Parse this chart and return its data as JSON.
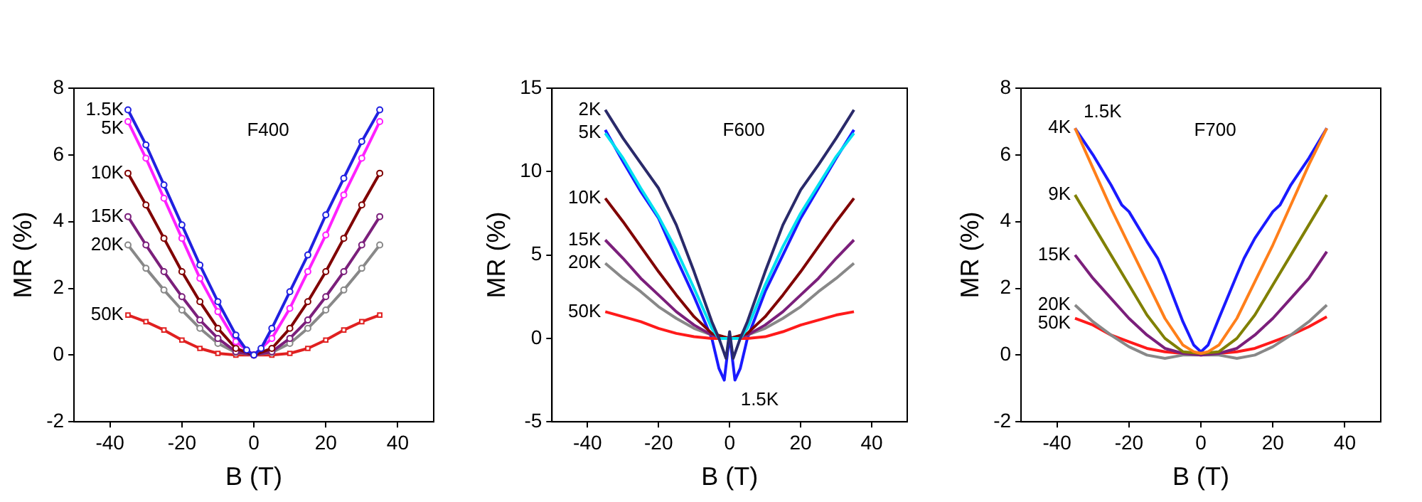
{
  "chart_data": [
    {
      "type": "line",
      "xlabel": "B (T)",
      "ylabel": "MR (%)",
      "annotations": [
        "F400"
      ],
      "xlim": [
        -50,
        50
      ],
      "xticks": [
        -40,
        -20,
        0,
        20,
        40
      ],
      "ylim": [
        -2,
        8
      ],
      "yticks": [
        -2,
        0,
        2,
        4,
        6,
        8
      ],
      "grid": false,
      "legend": false,
      "marker": "circle",
      "series": [
        {
          "name": "1.5K",
          "color": "#2020e0",
          "x": [
            -35,
            -30,
            -25,
            -20,
            -15,
            -10,
            -5,
            -2,
            0,
            2,
            5,
            10,
            15,
            20,
            25,
            30,
            35
          ],
          "values": [
            7.35,
            6.3,
            5.1,
            3.9,
            2.7,
            1.6,
            0.6,
            0.15,
            0,
            0.2,
            0.8,
            1.9,
            3.0,
            4.2,
            5.3,
            6.4,
            7.35
          ]
        },
        {
          "name": "5K",
          "color": "#ff20ff",
          "x": [
            -35,
            -30,
            -25,
            -20,
            -15,
            -10,
            -5,
            0,
            5,
            10,
            15,
            20,
            25,
            30,
            35
          ],
          "values": [
            7.0,
            5.9,
            4.7,
            3.5,
            2.3,
            1.3,
            0.4,
            0,
            0.5,
            1.4,
            2.5,
            3.6,
            4.8,
            5.9,
            7.0
          ]
        },
        {
          "name": "10K",
          "color": "#800000",
          "x": [
            -35,
            -30,
            -25,
            -20,
            -15,
            -10,
            -5,
            0,
            5,
            10,
            15,
            20,
            25,
            30,
            35
          ],
          "values": [
            5.45,
            4.5,
            3.5,
            2.5,
            1.6,
            0.8,
            0.2,
            0,
            0.2,
            0.8,
            1.6,
            2.5,
            3.5,
            4.5,
            5.45
          ]
        },
        {
          "name": "15K",
          "color": "#7b1f7b",
          "x": [
            -35,
            -30,
            -25,
            -20,
            -15,
            -10,
            -5,
            0,
            5,
            10,
            15,
            20,
            25,
            30,
            35
          ],
          "values": [
            4.15,
            3.3,
            2.5,
            1.75,
            1.05,
            0.5,
            0.1,
            0,
            0.1,
            0.5,
            1.05,
            1.75,
            2.5,
            3.3,
            4.15
          ]
        },
        {
          "name": "20K",
          "color": "#888888",
          "x": [
            -35,
            -30,
            -25,
            -20,
            -15,
            -10,
            -5,
            0,
            5,
            10,
            15,
            20,
            25,
            30,
            35
          ],
          "values": [
            3.3,
            2.6,
            1.95,
            1.35,
            0.8,
            0.35,
            0.08,
            0,
            0.08,
            0.35,
            0.8,
            1.35,
            1.95,
            2.6,
            3.3
          ]
        },
        {
          "name": "50K",
          "color": "#e02020",
          "marker": "square",
          "x": [
            -35,
            -30,
            -25,
            -20,
            -15,
            -10,
            -5,
            0,
            5,
            10,
            15,
            20,
            25,
            30,
            35
          ],
          "values": [
            1.2,
            1.0,
            0.75,
            0.45,
            0.2,
            0.05,
            0,
            0,
            0,
            0.05,
            0.2,
            0.45,
            0.75,
            1.0,
            1.2
          ]
        }
      ]
    },
    {
      "type": "line",
      "xlabel": "B (T)",
      "ylabel": "MR (%)",
      "annotations": [
        "F600"
      ],
      "xlim": [
        -50,
        50
      ],
      "xticks": [
        -40,
        -20,
        0,
        20,
        40
      ],
      "ylim": [
        -5,
        15
      ],
      "yticks": [
        -5,
        0,
        5,
        10,
        15
      ],
      "grid": false,
      "legend": false,
      "series": [
        {
          "name": "2K",
          "color": "#2a2a6a",
          "x": [
            -35,
            -30,
            -25,
            -20,
            -15,
            -10,
            -5,
            -3,
            -1,
            0,
            1,
            3,
            5,
            10,
            15,
            20,
            25,
            30,
            35
          ],
          "values": [
            13.7,
            12.0,
            10.5,
            9.0,
            6.8,
            4.0,
            1.0,
            0,
            -1.2,
            0.4,
            -1.2,
            0,
            1.0,
            4.0,
            6.8,
            8.9,
            10.4,
            12.0,
            13.7
          ]
        },
        {
          "name": "5K",
          "color": "#00e0f0",
          "x": [
            -35,
            -30,
            -25,
            -20,
            -15,
            -10,
            -5,
            -3,
            0,
            3,
            5,
            10,
            15,
            20,
            25,
            30,
            35
          ],
          "values": [
            12.3,
            10.8,
            9.0,
            7.3,
            5.3,
            3.0,
            0.6,
            0,
            0,
            0,
            0.6,
            3.2,
            5.5,
            7.5,
            9.2,
            10.9,
            12.3
          ]
        },
        {
          "name": "10K",
          "color": "#800000",
          "x": [
            -35,
            -30,
            -25,
            -20,
            -15,
            -10,
            -5,
            0,
            5,
            10,
            15,
            20,
            25,
            30,
            35
          ],
          "values": [
            8.4,
            7.0,
            5.5,
            4.0,
            2.6,
            1.3,
            0.3,
            0,
            0.3,
            1.3,
            2.6,
            4.0,
            5.5,
            7.0,
            8.4
          ]
        },
        {
          "name": "15K",
          "color": "#7b1f7b",
          "x": [
            -35,
            -30,
            -25,
            -20,
            -15,
            -10,
            -5,
            0,
            5,
            10,
            15,
            20,
            25,
            30,
            35
          ],
          "values": [
            5.9,
            4.8,
            3.6,
            2.6,
            1.6,
            0.8,
            0.2,
            0,
            0.2,
            0.8,
            1.6,
            2.6,
            3.6,
            4.8,
            5.9
          ]
        },
        {
          "name": "20K",
          "color": "#888888",
          "x": [
            -35,
            -30,
            -25,
            -20,
            -15,
            -10,
            -5,
            0,
            5,
            10,
            15,
            20,
            25,
            30,
            35
          ],
          "values": [
            4.5,
            3.6,
            2.8,
            1.9,
            1.2,
            0.6,
            0.2,
            0,
            0.2,
            0.6,
            1.2,
            1.9,
            2.8,
            3.6,
            4.5
          ]
        },
        {
          "name": "50K",
          "color": "#ff1a1a",
          "x": [
            -35,
            -30,
            -25,
            -20,
            -15,
            -10,
            -5,
            0,
            5,
            10,
            15,
            20,
            25,
            30,
            35
          ],
          "values": [
            1.6,
            1.3,
            1.0,
            0.6,
            0.3,
            0.1,
            0,
            0,
            0,
            0.1,
            0.4,
            0.8,
            1.1,
            1.4,
            1.6
          ]
        },
        {
          "name": "1.5K",
          "color": "#1a1aff",
          "x": [
            -35,
            -30,
            -25,
            -20,
            -15,
            -10,
            -5,
            -3,
            -1.5,
            0,
            1.5,
            3,
            5,
            10,
            15,
            20,
            25,
            30,
            35
          ],
          "values": [
            12.5,
            10.6,
            8.8,
            7.2,
            4.8,
            2.5,
            0,
            -1.8,
            -2.5,
            0.2,
            -2.5,
            -1.8,
            0,
            2.8,
            5.0,
            7.2,
            9.0,
            10.8,
            12.5
          ]
        }
      ]
    },
    {
      "type": "line",
      "xlabel": "B (T)",
      "ylabel": "MR (%)",
      "annotations": [
        "F700"
      ],
      "xlim": [
        -50,
        50
      ],
      "xticks": [
        -40,
        -20,
        0,
        20,
        40
      ],
      "ylim": [
        -2,
        8
      ],
      "yticks": [
        -2,
        0,
        2,
        4,
        6,
        8
      ],
      "grid": false,
      "legend": false,
      "series": [
        {
          "name": "4K",
          "color": "#ff7f1a",
          "x": [
            -35,
            -30,
            -25,
            -20,
            -15,
            -10,
            -5,
            -2,
            0,
            2,
            5,
            10,
            15,
            20,
            25,
            30,
            35
          ],
          "values": [
            6.8,
            5.6,
            4.4,
            3.3,
            2.2,
            1.1,
            0.3,
            0.1,
            0.05,
            0.1,
            0.3,
            1.1,
            2.2,
            3.3,
            4.5,
            5.7,
            6.8
          ]
        },
        {
          "name": "9K",
          "color": "#808000",
          "x": [
            -35,
            -30,
            -25,
            -20,
            -15,
            -10,
            -5,
            0,
            5,
            10,
            15,
            20,
            25,
            30,
            35
          ],
          "values": [
            4.8,
            3.9,
            3.0,
            2.1,
            1.2,
            0.5,
            0.1,
            0.05,
            0.1,
            0.5,
            1.2,
            2.1,
            3.0,
            3.9,
            4.8
          ]
        },
        {
          "name": "15K",
          "color": "#7b1f7b",
          "x": [
            -35,
            -30,
            -25,
            -20,
            -15,
            -10,
            -5,
            0,
            5,
            10,
            15,
            20,
            25,
            30,
            35
          ],
          "values": [
            3.0,
            2.3,
            1.7,
            1.1,
            0.6,
            0.2,
            0.05,
            0,
            0.05,
            0.2,
            0.6,
            1.1,
            1.7,
            2.3,
            3.1
          ]
        },
        {
          "name": "20K",
          "color": "#888888",
          "x": [
            -35,
            -30,
            -25,
            -20,
            -15,
            -10,
            -5,
            0,
            5,
            10,
            15,
            20,
            25,
            30,
            35
          ],
          "values": [
            1.5,
            1.0,
            0.6,
            0.25,
            0,
            -0.1,
            0,
            0,
            0,
            -0.1,
            0,
            0.25,
            0.6,
            1.0,
            1.5
          ]
        },
        {
          "name": "50K",
          "color": "#ff1a1a",
          "x": [
            -35,
            -30,
            -25,
            -20,
            -15,
            -10,
            -5,
            0,
            5,
            10,
            15,
            20,
            25,
            30,
            35
          ],
          "values": [
            1.1,
            0.9,
            0.6,
            0.4,
            0.2,
            0.1,
            0.05,
            0,
            0.05,
            0.1,
            0.2,
            0.4,
            0.6,
            0.85,
            1.15
          ]
        },
        {
          "name": "1.5K",
          "color": "#1a1aff",
          "x": [
            -35,
            -30,
            -25,
            -22,
            -20,
            -15,
            -12,
            -10,
            -5,
            -2,
            0,
            2,
            5,
            10,
            12,
            15,
            20,
            22,
            25,
            30,
            35
          ],
          "values": [
            6.8,
            6.0,
            5.1,
            4.5,
            4.3,
            3.4,
            2.9,
            2.4,
            1.0,
            0.3,
            0.1,
            0.3,
            1.1,
            2.4,
            2.9,
            3.5,
            4.3,
            4.5,
            5.1,
            5.9,
            6.8
          ]
        }
      ]
    }
  ]
}
